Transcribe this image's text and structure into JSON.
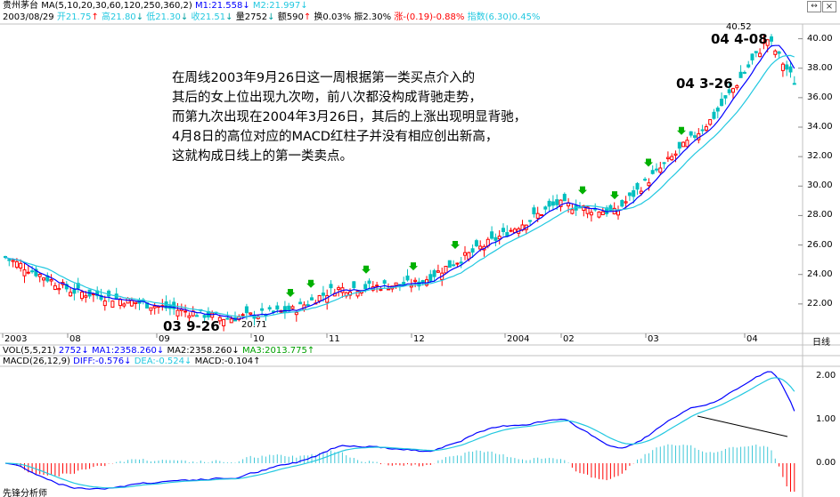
{
  "header": {
    "line1": {
      "stock": "贵州茅台",
      "ma_params": "MA(5,10,20,30,60,120,250,360,2)",
      "m1": "M1:21.558",
      "m1_arrow": "↓",
      "m2": "M2:21.997",
      "m2_arrow": "↓"
    },
    "line2": {
      "date": "2003/08/29",
      "open": "开21.75",
      "open_arrow": "↑",
      "high": "高21.80",
      "high_arrow": "↓",
      "low": "低21.30",
      "low_arrow": "↓",
      "close": "收21.51",
      "close_arrow": "↓",
      "volume": "量2752",
      "volume_arrow": "↓",
      "amount": "额590",
      "amount_arrow": "↑",
      "turnover": "换0.03%",
      "amplitude": "振2.30%",
      "change": "涨-(0.19)-0.88%",
      "index": "指数(6.30)0.45%"
    }
  },
  "window_buttons": {
    "restore": "↔",
    "close": "×"
  },
  "annotation_text": {
    "lines": [
      "在周线2003年9月26日这一周根据第一类买点介入的",
      "其后的女上位出现九次吻，前八次都没构成背驰走势，",
      "而第九次出现在2004年3月26日，其后的上涨出现明显背驰，",
      "4月8日的高位对应的MACD红柱子并没有相应创出新高，",
      "这就构成日线上的第一类卖点。"
    ]
  },
  "labels": {
    "buy_point": "03 9-26",
    "kiss9": "04 3-26",
    "sell_point": "04 4-08",
    "low_price": "20.71",
    "high_price": "40.52"
  },
  "axis": {
    "y_ticks": [
      "40.00",
      "38.00",
      "36.00",
      "34.00",
      "32.00",
      "30.00",
      "28.00",
      "26.00",
      "24.00",
      "22.00"
    ],
    "x_ticks": [
      "2003",
      "08",
      "09",
      "10",
      "11",
      "12",
      "2004",
      "02",
      "03",
      "04"
    ],
    "period": "日线",
    "macd_ticks": [
      "2.00",
      "1.00",
      "0.00"
    ]
  },
  "indicators": {
    "vol": {
      "params": "VOL(5,5,21)",
      "value": "2752",
      "value_arrow": "↓",
      "ma1": "MA1:2358.260",
      "ma1_arrow": "↓",
      "ma2": "MA2:2358.260",
      "ma2_arrow": "↓",
      "ma3": "MA3:2013.775",
      "ma3_arrow": "↑"
    },
    "macd": {
      "params": "MACD(26,12,9)",
      "diff": "DIFF:-0.576",
      "diff_arrow": "↓",
      "dea": "DEA:-0.524",
      "dea_arrow": "↓",
      "macd": "MACD:-0.104",
      "macd_arrow": "↑"
    }
  },
  "footer": {
    "app_name": "先锋分析师"
  },
  "colors": {
    "up": "#ff0000",
    "down": "#00bfbf",
    "ma_blue": "#0000ff",
    "ma_cyan": "#22c8e0",
    "kiss_marker": "#00b000",
    "grid": "#c0c0c0"
  },
  "chart_data": {
    "type": "candlestick",
    "title": "贵州茅台 日线",
    "ylim": [
      20.0,
      41.0
    ],
    "x_labels": [
      "2003",
      "08",
      "09",
      "10",
      "11",
      "12",
      "2004",
      "02",
      "03",
      "04"
    ],
    "price_path": [
      {
        "date": "2003-07",
        "close": 25.2
      },
      {
        "date": "2003-08",
        "close": 22.9
      },
      {
        "date": "2003-09-26",
        "close": 21.0
      },
      {
        "date": "2003-10",
        "close": 21.6
      },
      {
        "date": "2003-11",
        "close": 23.0
      },
      {
        "date": "2003-12",
        "close": 23.4
      },
      {
        "date": "2004-01",
        "close": 28.8
      },
      {
        "date": "2004-02",
        "close": 28.2
      },
      {
        "date": "2004-03-26",
        "close": 34.6
      },
      {
        "date": "2004-04-08",
        "close": 40.0
      },
      {
        "date": "2004-04",
        "close": 37.0
      }
    ],
    "low": 20.71,
    "high": 40.52,
    "kiss_markers_count": 9,
    "macd_ylim": [
      -0.5,
      2.2
    ],
    "series": [
      {
        "name": "DIFF",
        "last": -0.576
      },
      {
        "name": "DEA",
        "last": -0.524
      },
      {
        "name": "MACD",
        "last": -0.104
      }
    ]
  }
}
